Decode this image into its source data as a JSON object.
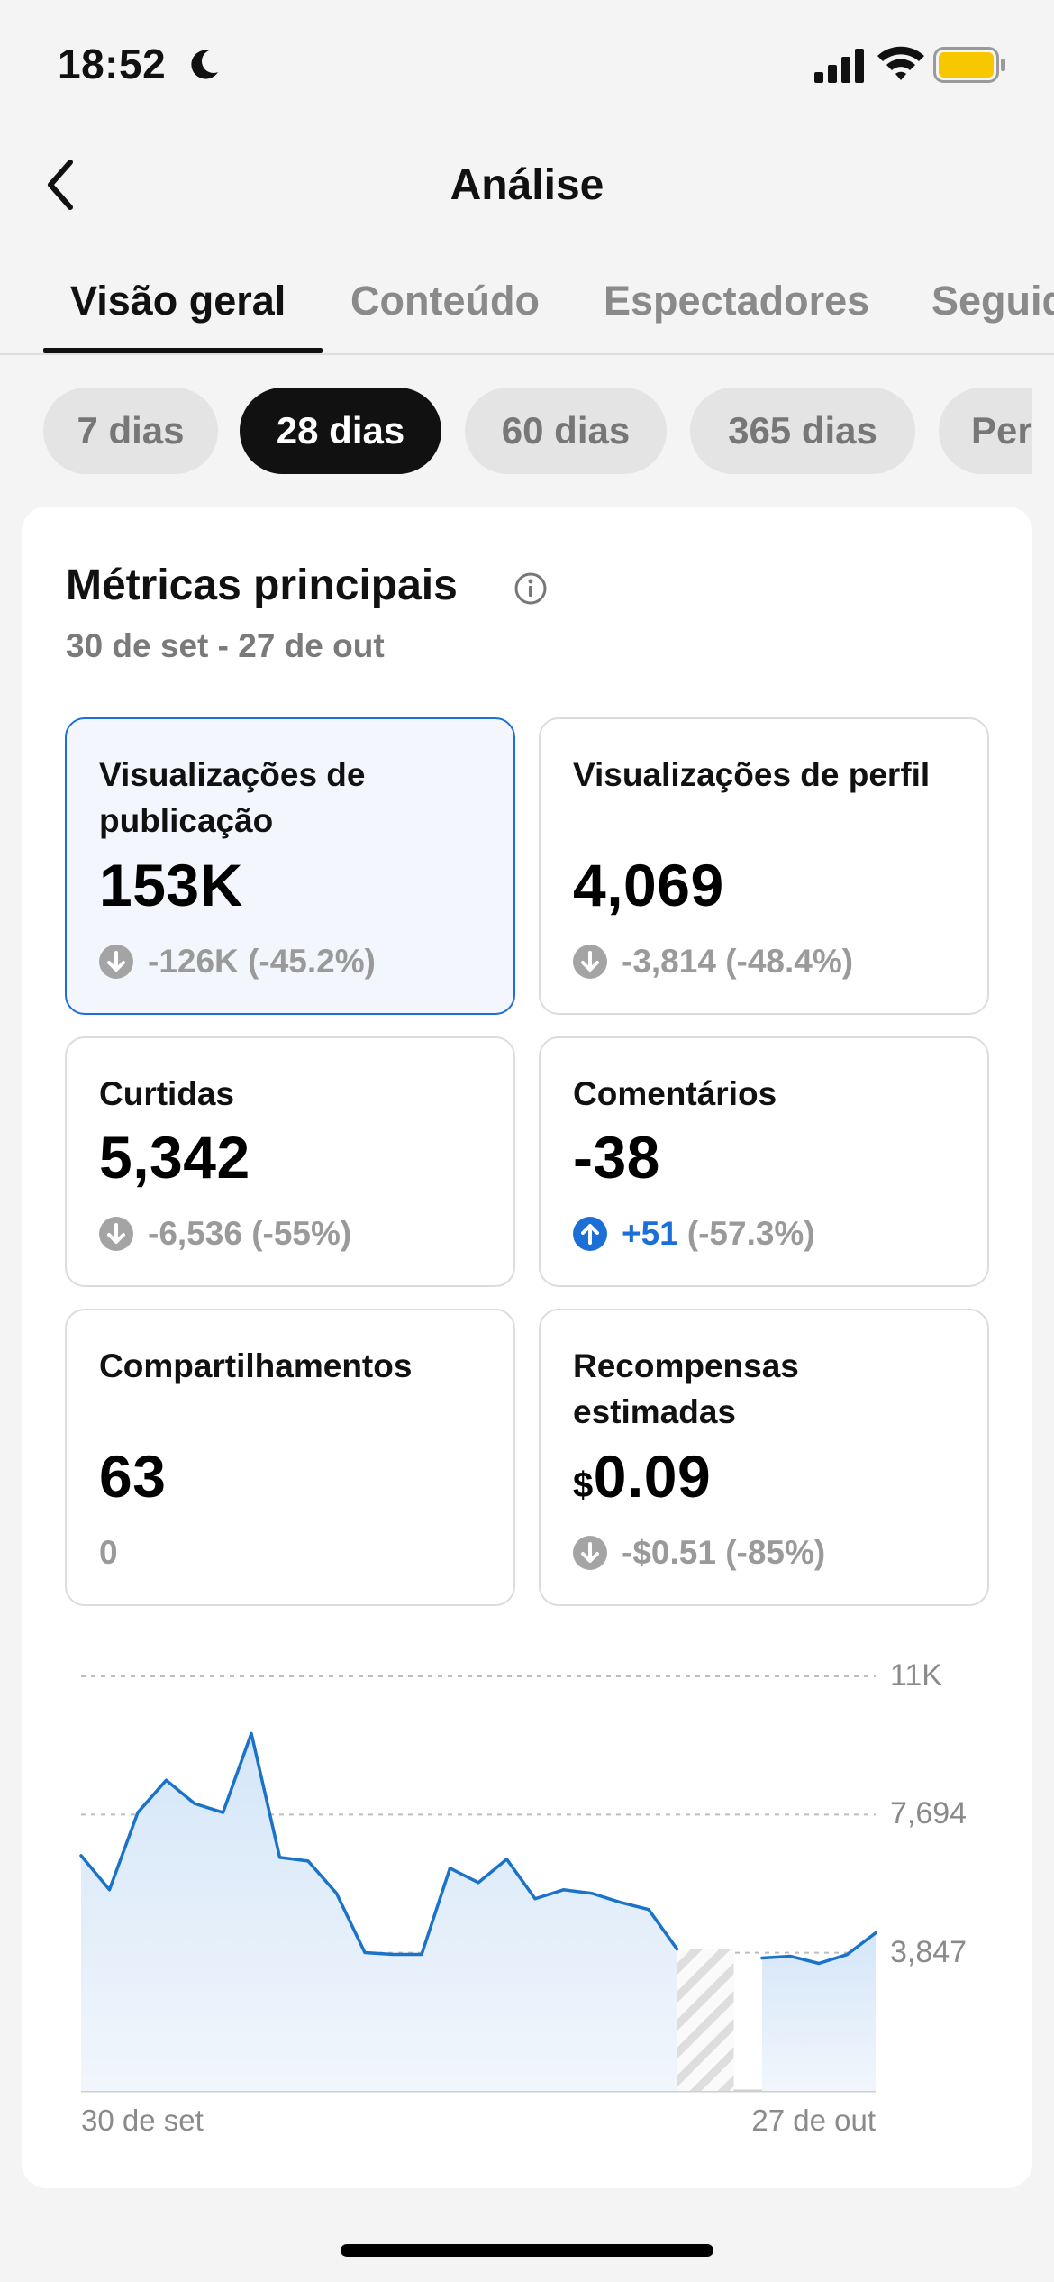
{
  "status": {
    "time": "18:52",
    "battery_color": "#f7c800"
  },
  "nav": {
    "title": "Análise",
    "back_icon": "chevron-left"
  },
  "tabs": [
    {
      "label": "Visão geral",
      "active": true
    },
    {
      "label": "Conteúdo",
      "active": false
    },
    {
      "label": "Espectadores",
      "active": false
    },
    {
      "label": "Seguidores",
      "active": false
    }
  ],
  "ranges": [
    {
      "label": "7 dias",
      "active": false
    },
    {
      "label": "28 dias",
      "active": true
    },
    {
      "label": "60 dias",
      "active": false
    },
    {
      "label": "365 dias",
      "active": false
    },
    {
      "label": "Personalizado",
      "active": false
    }
  ],
  "metrics": {
    "title": "Métricas principais",
    "date_range": "30 de set - 27 de out",
    "cards": [
      {
        "label": "Visualizações de publicação",
        "value": "153K",
        "delta": "-126K (-45.2%)",
        "direction": "down",
        "selected": true
      },
      {
        "label": "Visualizações de perfil",
        "value": "4,069",
        "delta": "-3,814 (-48.4%)",
        "direction": "down",
        "selected": false
      },
      {
        "label": "Curtidas",
        "value": "5,342",
        "delta": "-6,536 (-55%)",
        "direction": "down",
        "selected": false
      },
      {
        "label": "Comentários",
        "value": "-38",
        "delta_positive": "+51",
        "delta": "(-57.3%)",
        "direction": "up",
        "selected": false
      },
      {
        "label": "Compartilhamentos",
        "value": "63",
        "delta": "0",
        "direction": "none",
        "selected": false
      },
      {
        "label": "Recompensas estimadas",
        "currency": "$",
        "value": "0.09",
        "delta": "-$0.51 (-85%)",
        "direction": "down",
        "selected": false
      }
    ]
  },
  "chart_data": {
    "type": "area",
    "title": "",
    "xlabel": "",
    "ylabel": "",
    "x_tick_labels": [
      "30 de set",
      "27 de out"
    ],
    "y_tick_labels": [
      "11K",
      "7,694",
      "3,847"
    ],
    "ylim": [
      0,
      11540
    ],
    "grid": true,
    "pending_range_index": [
      21,
      23
    ],
    "series": [
      {
        "values": [
          6550,
          5600,
          7750,
          8650,
          8000,
          7750,
          9950,
          6500,
          6400,
          5500,
          3850,
          3800,
          3800,
          6200,
          5800,
          6450,
          5350,
          5600,
          5500,
          5250,
          5050,
          3950,
          null,
          null,
          3700,
          3750,
          3550,
          3800,
          4400
        ]
      }
    ],
    "line_color": "#1a73c9",
    "fill_color": "#dceaf8"
  }
}
